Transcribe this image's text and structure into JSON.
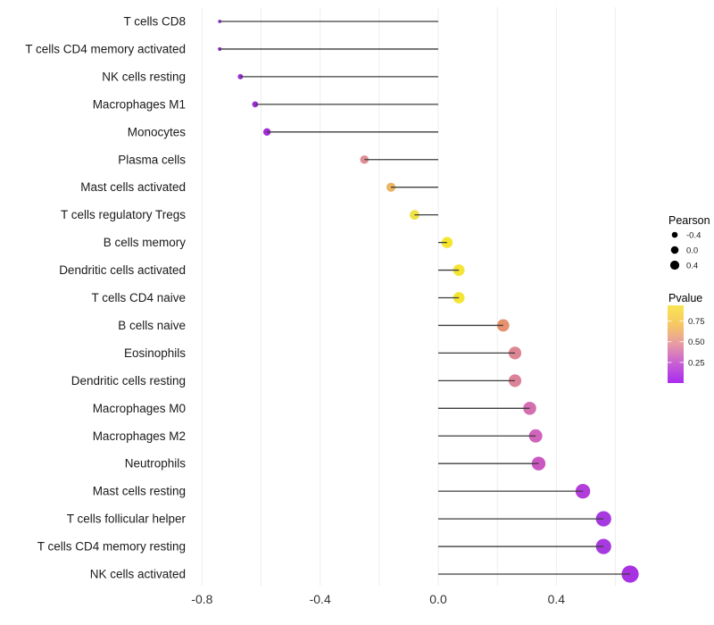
{
  "chart_data": {
    "type": "scatter",
    "subtype": "lollipop-horizontal",
    "title": "",
    "xlabel": "",
    "ylabel": "",
    "baseline_x": 0,
    "xlim": [
      -0.93,
      0.69
    ],
    "x_ticks": [
      -0.8,
      -0.4,
      0.0,
      0.4
    ],
    "x_tick_labels": [
      "-0.8",
      "-0.4",
      "0.0",
      "0.4"
    ],
    "x_gridlines": [
      -0.8,
      -0.6,
      -0.4,
      -0.2,
      0.0,
      0.2,
      0.4,
      0.6
    ],
    "grid": true,
    "legend_position": "right",
    "rows": [
      {
        "label": "T cells CD8",
        "pearson": -0.74,
        "pvalue_est": 0.05,
        "color": "#8F2BD0",
        "radius": 1.9
      },
      {
        "label": "T cells CD4 memory activated",
        "pearson": -0.74,
        "pvalue_est": 0.05,
        "color": "#8F2BD0",
        "radius": 2.1
      },
      {
        "label": "NK cells resting",
        "pearson": -0.67,
        "pvalue_est": 0.07,
        "color": "#9530D3",
        "radius": 3.0
      },
      {
        "label": "Macrophages M1",
        "pearson": -0.62,
        "pvalue_est": 0.08,
        "color": "#9A2ED4",
        "radius": 3.4
      },
      {
        "label": "Monocytes",
        "pearson": -0.58,
        "pvalue_est": 0.1,
        "color": "#A32BD6",
        "radius": 4.2
      },
      {
        "label": "Plasma cells",
        "pearson": -0.25,
        "pvalue_est": 0.52,
        "color": "#DE8F93",
        "radius": 4.8
      },
      {
        "label": "Mast cells activated",
        "pearson": -0.16,
        "pvalue_est": 0.68,
        "color": "#EBB45F",
        "radius": 5.1
      },
      {
        "label": "T cells regulatory  Tregs",
        "pearson": -0.08,
        "pvalue_est": 0.85,
        "color": "#EFE243",
        "radius": 5.4
      },
      {
        "label": "B cells memory",
        "pearson": 0.03,
        "pvalue_est": 0.9,
        "color": "#F6E52C",
        "radius": 6.2
      },
      {
        "label": "Dendritic cells activated",
        "pearson": 0.07,
        "pvalue_est": 0.88,
        "color": "#F4E435",
        "radius": 6.4
      },
      {
        "label": "T cells CD4 naive",
        "pearson": 0.07,
        "pvalue_est": 0.88,
        "color": "#F4E435",
        "radius": 6.4
      },
      {
        "label": "B cells naive",
        "pearson": 0.22,
        "pvalue_est": 0.57,
        "color": "#E6926F",
        "radius": 6.9
      },
      {
        "label": "Eosinophils",
        "pearson": 0.26,
        "pvalue_est": 0.5,
        "color": "#DE8593",
        "radius": 7.1
      },
      {
        "label": "Dendritic cells resting",
        "pearson": 0.26,
        "pvalue_est": 0.48,
        "color": "#DC8298",
        "radius": 7.1
      },
      {
        "label": "Macrophages M0",
        "pearson": 0.31,
        "pvalue_est": 0.4,
        "color": "#D36FB0",
        "radius": 7.3
      },
      {
        "label": "Macrophages M2",
        "pearson": 0.33,
        "pvalue_est": 0.37,
        "color": "#D063BA",
        "radius": 7.5
      },
      {
        "label": "Neutrophils",
        "pearson": 0.34,
        "pvalue_est": 0.33,
        "color": "#CB58C2",
        "radius": 7.7
      },
      {
        "label": "Mast cells resting",
        "pearson": 0.49,
        "pvalue_est": 0.2,
        "color": "#B23DDA",
        "radius": 8.2
      },
      {
        "label": "T cells follicular helper",
        "pearson": 0.56,
        "pvalue_est": 0.15,
        "color": "#A63AE0",
        "radius": 8.6
      },
      {
        "label": "T cells CD4 memory resting",
        "pearson": 0.56,
        "pvalue_est": 0.15,
        "color": "#A63AE0",
        "radius": 8.6
      },
      {
        "label": "NK cells activated",
        "pearson": 0.65,
        "pvalue_est": 0.12,
        "color": "#A832E2",
        "radius": 9.6
      }
    ],
    "legend": {
      "size_legend": {
        "title": "Pearson",
        "dot_color": "#000000",
        "entries": [
          {
            "label": "-0.4",
            "radius": 3.3
          },
          {
            "label": "0.0",
            "radius": 4.3
          },
          {
            "label": "0.4",
            "radius": 5.1
          }
        ]
      },
      "color_legend": {
        "title": "Pvalue",
        "tick_labels": [
          "0.75",
          "0.50",
          "0.25"
        ],
        "tick_values": [
          0.75,
          0.5,
          0.25
        ],
        "value_range_top_to_bottom": [
          0.94,
          0.0
        ],
        "gradient_top_to_bottom": [
          "#F9E553",
          "#F6C763",
          "#E79AA4",
          "#C75FD4",
          "#A82BF0"
        ]
      }
    },
    "colors": {
      "background": "#FFFFFF",
      "stem": "#3D3D3D",
      "grid": "#EEEEEE",
      "row_label_text": "#1A1A1A",
      "axis_tick_text": "#333333",
      "legend_text": "#1A1A1A"
    }
  }
}
